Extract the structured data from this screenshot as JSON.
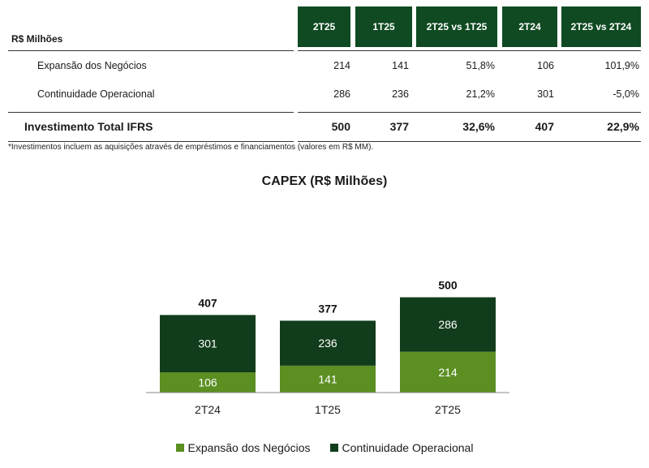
{
  "table": {
    "unit_label": "R$ Milhões",
    "columns": [
      "2T25",
      "1T25",
      "2T25 vs 1T25",
      "2T24",
      "2T25 vs 2T24"
    ],
    "rows": [
      {
        "label": "Expansão dos Negócios",
        "values": [
          "214",
          "141",
          "51,8%",
          "106",
          "101,9%"
        ]
      },
      {
        "label": "Continuidade Operacional",
        "values": [
          "286",
          "236",
          "21,2%",
          "301",
          "-5,0%"
        ]
      }
    ],
    "total": {
      "label": "Investimento Total IFRS",
      "values": [
        "500",
        "377",
        "32,6%",
        "407",
        "22,9%"
      ]
    },
    "footnote": "*Investimentos incluem as aquisições através de empréstimos e financiamentos (valores em R$ MM)."
  },
  "colors": {
    "header_bg": "#0f4a22",
    "expansao": "#5b8f22",
    "continuidade": "#123d1c"
  },
  "chart_data": {
    "type": "bar",
    "stacked": true,
    "title": "CAPEX (R$ Milhões)",
    "categories": [
      "2T24",
      "1T25",
      "2T25"
    ],
    "series": [
      {
        "name": "Expansão dos Negócios",
        "values": [
          106,
          141,
          214
        ]
      },
      {
        "name": "Continuidade Operacional",
        "values": [
          301,
          236,
          286
        ]
      }
    ],
    "totals": [
      407,
      377,
      500
    ],
    "legend": "bottom-center",
    "grid": false,
    "xlabel": "",
    "ylabel": "",
    "ylim": [
      0,
      500
    ]
  }
}
